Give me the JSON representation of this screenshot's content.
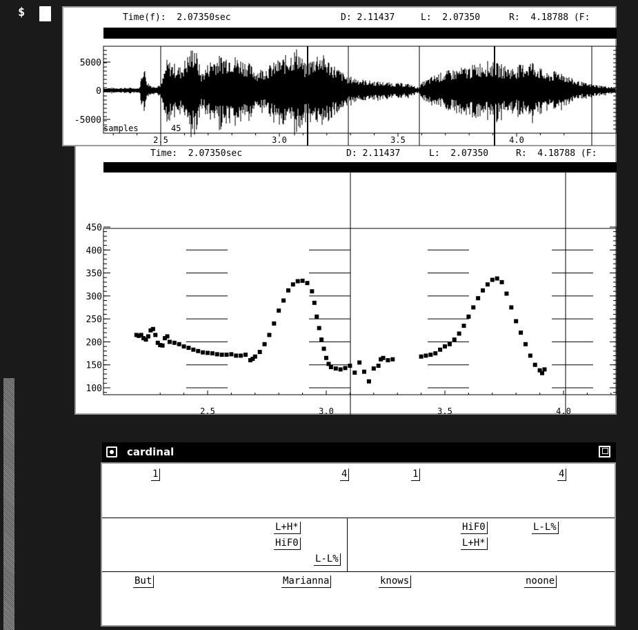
{
  "terminal": {
    "prompt": "$"
  },
  "waveform": {
    "time_label": "Time(f):  2.07350sec",
    "d_label": "D: 2.11437",
    "l_label": "L:  2.07350",
    "r_label": "R:  4.18788 (F:",
    "y_ticks": [
      "5000",
      "0",
      "-5000"
    ],
    "x_ticks": [
      "2.5",
      "3.0",
      "3.5",
      "4.0"
    ],
    "samples_label": "samples",
    "samples_value": "45"
  },
  "pitch": {
    "time_label": "Time:  2.07350sec",
    "d_label": "D: 2.11437",
    "l_label": "L:  2.07350",
    "r_label": "R:  4.18788 (F:",
    "y_ticks": [
      "450",
      "400",
      "350",
      "300",
      "250",
      "200",
      "150",
      "100"
    ],
    "x_ticks": [
      "2.5",
      "3.0",
      "3.5",
      "4.0"
    ]
  },
  "label_window": {
    "title": "cardinal",
    "tiers": {
      "break_indices": [
        "1",
        "4",
        "1",
        "4"
      ],
      "tones": [
        "L+H*",
        "HiF0",
        "L-L%",
        "HiF0",
        "L+H*",
        "L-L%"
      ],
      "words": [
        "But",
        "Marianna",
        "knows",
        "noone"
      ]
    }
  },
  "colors": {
    "desktop": "#1a1a1a",
    "window_border": "#999999",
    "plot_bg": "#ffffff",
    "ink": "#000000"
  },
  "icons": [
    "window-menu-icon",
    "maximize-icon"
  ]
}
